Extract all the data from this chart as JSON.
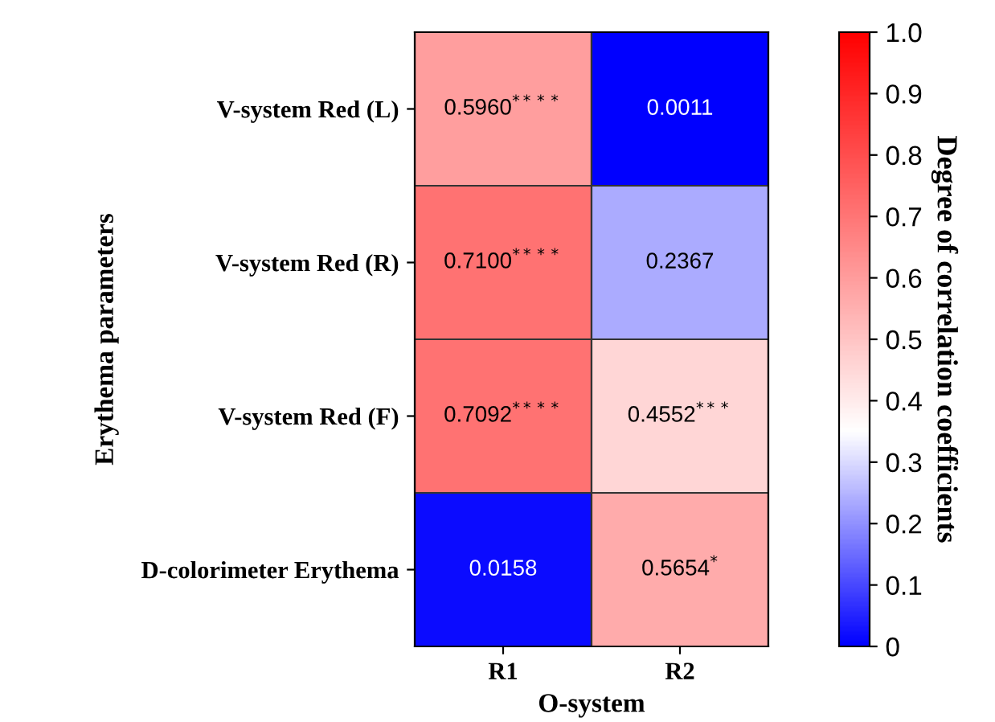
{
  "chart_data": {
    "type": "heatmap",
    "xlabel": "O-system",
    "ylabel": "Erythema parameters",
    "clabel": "Degree of correlation coefficients",
    "categories": [
      "R1",
      "R2"
    ],
    "y_categories": [
      "V-system Red (L)",
      "V-system Red (R)",
      "V-system Red (F)",
      "D-colorimeter Erythema"
    ],
    "cells": [
      [
        0.596,
        0.0011
      ],
      [
        0.71,
        0.2367
      ],
      [
        0.7092,
        0.4552
      ],
      [
        0.0158,
        0.5654
      ]
    ],
    "cell_labels": [
      [
        "0.5960$^{****}$",
        "0.0011"
      ],
      [
        "0.7100$^{****}$",
        "0.2367"
      ],
      [
        "0.7092$^{****}$",
        "0.4552$^{***}$"
      ],
      [
        "0.0158",
        "0.5654$^{*}$"
      ]
    ],
    "clim": [
      0,
      1
    ],
    "cticks": [
      0,
      0.1,
      0.2,
      0.3,
      0.4,
      0.5,
      0.6,
      0.7,
      0.8,
      0.9,
      {
        "value": 1,
        "label": "1.0"
      }
    ]
  }
}
